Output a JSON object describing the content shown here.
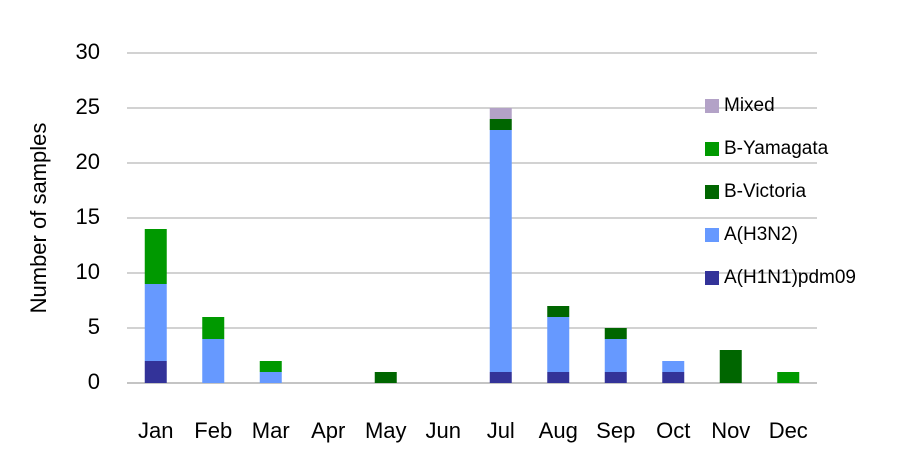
{
  "chart_data": {
    "type": "stacked-bar",
    "y_label": "Number of samples",
    "categories": [
      "Jan",
      "Feb",
      "Mar",
      "Apr",
      "May",
      "Jun",
      "Jul",
      "Aug",
      "Sep",
      "Oct",
      "Nov",
      "Dec"
    ],
    "series": [
      {
        "name": "A(H1N1)pdm09",
        "color": "#333399",
        "values": [
          2,
          0,
          0,
          0,
          0,
          0,
          1,
          1,
          1,
          1,
          0,
          0
        ]
      },
      {
        "name": "A(H3N2)",
        "color": "#6699ff",
        "values": [
          7,
          4,
          1,
          0,
          0,
          0,
          22,
          5,
          3,
          1,
          0,
          0
        ]
      },
      {
        "name": "B-Victoria",
        "color": "#006600",
        "values": [
          0,
          0,
          0,
          0,
          1,
          0,
          1,
          1,
          1,
          0,
          3,
          0
        ]
      },
      {
        "name": "B-Yamagata",
        "color": "#009900",
        "values": [
          5,
          2,
          1,
          0,
          0,
          0,
          0,
          0,
          0,
          0,
          0,
          1
        ]
      },
      {
        "name": "Mixed",
        "color": "#b3a2c7",
        "values": [
          0,
          0,
          0,
          0,
          0,
          0,
          1,
          0,
          0,
          0,
          0,
          0
        ]
      }
    ],
    "ylim": [
      0,
      30
    ],
    "yticks": [
      0,
      5,
      10,
      15,
      20,
      25,
      30
    ],
    "grid": true,
    "legend": "right"
  }
}
